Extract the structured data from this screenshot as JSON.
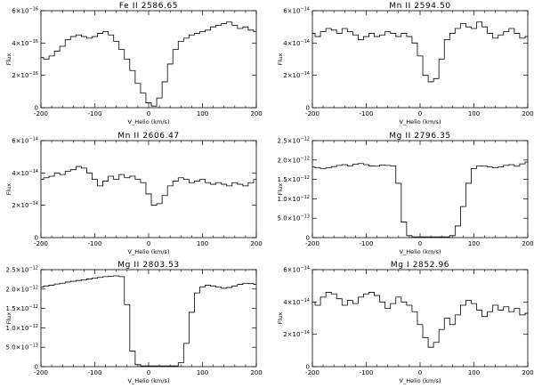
{
  "chart_data": [
    {
      "type": "line",
      "title": "Fe II 2586.65",
      "xlabel": "V_Helio (km/s)",
      "ylabel": "Flux",
      "xlim": [
        -200,
        200
      ],
      "ylim": [
        0,
        6e-16
      ],
      "grid": false,
      "xticks": [
        -200,
        -100,
        0,
        100,
        200
      ],
      "xtick_labels": [
        "-200",
        "-100",
        "0",
        "100",
        "200"
      ],
      "yticks": [
        0,
        2e-16,
        4e-16,
        6e-16
      ],
      "ytick_labels": [
        {
          "m": "0",
          "e": ""
        },
        {
          "m": "2×10",
          "e": "−16"
        },
        {
          "m": "4×10",
          "e": "−16"
        },
        {
          "m": "6×10",
          "e": "−16"
        }
      ],
      "series": [
        {
          "x": [
            -200,
            -190,
            -180,
            -170,
            -160,
            -150,
            -140,
            -130,
            -120,
            -110,
            -100,
            -90,
            -80,
            -70,
            -60,
            -50,
            -40,
            -30,
            -20,
            -10,
            0,
            10,
            20,
            30,
            40,
            50,
            60,
            70,
            80,
            90,
            100,
            110,
            120,
            130,
            140,
            150,
            160,
            170,
            180,
            190,
            200
          ],
          "y": [
            3.1e-16,
            3e-16,
            3.2e-16,
            3.5e-16,
            3.8e-16,
            4.2e-16,
            4.4e-16,
            4.5e-16,
            4.4e-16,
            4.3e-16,
            4.4e-16,
            4.6e-16,
            4.7e-16,
            4.5e-16,
            4.1e-16,
            3.6e-16,
            3e-16,
            2.3e-16,
            1.5e-16,
            9e-17,
            3e-17,
            1e-17,
            6e-17,
            1.6e-16,
            2.7e-16,
            3.6e-16,
            4.1e-16,
            4.3e-16,
            4.5e-16,
            4.6e-16,
            4.7e-16,
            4.8e-16,
            5e-16,
            5.1e-16,
            5.2e-16,
            5.3e-16,
            5.1e-16,
            4.9e-16,
            5e-16,
            4.8e-16,
            4.7e-16
          ]
        }
      ]
    },
    {
      "type": "line",
      "title": "Mn II 2594.50",
      "xlabel": "V_Helio (km/s)",
      "ylabel": "Flux",
      "xlim": [
        -200,
        200
      ],
      "ylim": [
        0,
        6e-14
      ],
      "grid": false,
      "xticks": [
        -200,
        -100,
        0,
        100,
        200
      ],
      "xtick_labels": [
        "-200",
        "-100",
        "0",
        "100",
        "200"
      ],
      "yticks": [
        0,
        2e-14,
        4e-14,
        6e-14
      ],
      "ytick_labels": [
        {
          "m": "0",
          "e": ""
        },
        {
          "m": "2×10",
          "e": "−14"
        },
        {
          "m": "4×10",
          "e": "−14"
        },
        {
          "m": "6×10",
          "e": "−14"
        }
      ],
      "series": [
        {
          "x": [
            -200,
            -190,
            -180,
            -170,
            -160,
            -150,
            -140,
            -130,
            -120,
            -110,
            -100,
            -90,
            -80,
            -70,
            -60,
            -50,
            -40,
            -30,
            -20,
            -10,
            0,
            10,
            20,
            30,
            40,
            50,
            60,
            70,
            80,
            90,
            100,
            110,
            120,
            130,
            140,
            150,
            160,
            170,
            180,
            190,
            200
          ],
          "y": [
            4.6e-14,
            4.4e-14,
            4.7e-14,
            4.9e-14,
            4.8e-14,
            4.6e-14,
            4.9e-14,
            4.7e-14,
            4.5e-14,
            4.2e-14,
            4.4e-14,
            4.6e-14,
            4.4e-14,
            4.5e-14,
            4.7e-14,
            4.6e-14,
            4.4e-14,
            4.6e-14,
            4.4e-14,
            4e-14,
            3.2e-14,
            2e-14,
            1.6e-14,
            1.8e-14,
            3e-14,
            4.2e-14,
            4.6e-14,
            4.9e-14,
            5.2e-14,
            5e-14,
            4.9e-14,
            5.3e-14,
            5e-14,
            4.6e-14,
            4.3e-14,
            4.5e-14,
            4.7e-14,
            4.9e-14,
            4.6e-14,
            4.3e-14,
            4.4e-14
          ]
        }
      ]
    },
    {
      "type": "line",
      "title": "Mn II 2606.47",
      "xlabel": "V_Helio (km/s)",
      "ylabel": "Flux",
      "xlim": [
        -200,
        200
      ],
      "ylim": [
        0,
        6e-14
      ],
      "grid": false,
      "xticks": [
        -200,
        -100,
        0,
        100,
        200
      ],
      "xtick_labels": [
        "-200",
        "-100",
        "0",
        "100",
        "200"
      ],
      "yticks": [
        0,
        2e-14,
        4e-14,
        6e-14
      ],
      "ytick_labels": [
        {
          "m": "0",
          "e": ""
        },
        {
          "m": "2×10",
          "e": "−14"
        },
        {
          "m": "4×10",
          "e": "−14"
        },
        {
          "m": "6×10",
          "e": "−14"
        }
      ],
      "series": [
        {
          "x": [
            -200,
            -190,
            -180,
            -170,
            -160,
            -150,
            -140,
            -130,
            -120,
            -110,
            -100,
            -90,
            -80,
            -70,
            -60,
            -50,
            -40,
            -30,
            -20,
            -10,
            0,
            10,
            20,
            30,
            40,
            50,
            60,
            70,
            80,
            90,
            100,
            110,
            120,
            130,
            140,
            150,
            160,
            170,
            180,
            190,
            200
          ],
          "y": [
            3.6e-14,
            3.7e-14,
            3.8e-14,
            4e-14,
            3.9e-14,
            4.1e-14,
            4.2e-14,
            4.4e-14,
            4.3e-14,
            4e-14,
            3.6e-14,
            3.2e-14,
            3.5e-14,
            3.8e-14,
            3.6e-14,
            3.9e-14,
            3.7e-14,
            3.8e-14,
            3.6e-14,
            3.4e-14,
            2.7e-14,
            2e-14,
            2.1e-14,
            2.6e-14,
            3.2e-14,
            3.5e-14,
            3.7e-14,
            3.6e-14,
            3.4e-14,
            3.5e-14,
            3.6e-14,
            3.4e-14,
            3.3e-14,
            3.4e-14,
            3.3e-14,
            3.2e-14,
            3.4e-14,
            3.3e-14,
            3.2e-14,
            3.4e-14,
            3.6e-14
          ]
        }
      ]
    },
    {
      "type": "line",
      "title": "Mg II 2796.35",
      "xlabel": "V_Helio (km/s)",
      "ylabel": "Flux",
      "xlim": [
        -200,
        200
      ],
      "ylim": [
        0,
        2.5e-12
      ],
      "grid": false,
      "xticks": [
        -200,
        -100,
        0,
        100,
        200
      ],
      "xtick_labels": [
        "-200",
        "-100",
        "0",
        "100",
        "200"
      ],
      "yticks": [
        0,
        5e-13,
        1e-12,
        1.5e-12,
        2e-12,
        2.5e-12
      ],
      "ytick_labels": [
        {
          "m": "0",
          "e": ""
        },
        {
          "m": "5.0×10",
          "e": "−13"
        },
        {
          "m": "1.0×10",
          "e": "−12"
        },
        {
          "m": "1.5×10",
          "e": "−12"
        },
        {
          "m": "2.0×10",
          "e": "−12"
        },
        {
          "m": "2.5×10",
          "e": "−12"
        }
      ],
      "series": [
        {
          "x": [
            -200,
            -190,
            -180,
            -170,
            -160,
            -150,
            -140,
            -130,
            -120,
            -110,
            -100,
            -90,
            -80,
            -70,
            -60,
            -50,
            -40,
            -30,
            -20,
            -10,
            0,
            10,
            20,
            30,
            40,
            50,
            60,
            70,
            80,
            90,
            100,
            110,
            120,
            130,
            140,
            150,
            160,
            170,
            180,
            190,
            200
          ],
          "y": [
            1.82e-12,
            1.8e-12,
            1.78e-12,
            1.8e-12,
            1.83e-12,
            1.86e-12,
            1.88e-12,
            1.85e-12,
            1.89e-12,
            1.91e-12,
            1.88e-12,
            1.85e-12,
            1.84e-12,
            1.87e-12,
            1.86e-12,
            1.85e-12,
            1.4e-12,
            4e-13,
            5e-14,
            2e-14,
            2e-14,
            2e-14,
            2e-14,
            2e-14,
            2e-14,
            2e-14,
            5e-14,
            3e-13,
            8e-13,
            1.4e-12,
            1.78e-12,
            1.85e-12,
            1.84e-12,
            1.82e-12,
            1.8e-12,
            1.82e-12,
            1.86e-12,
            1.88e-12,
            1.84e-12,
            1.9e-12,
            1.95e-12
          ]
        }
      ]
    },
    {
      "type": "line",
      "title": "Mg II 2803.53",
      "xlabel": "V_Helio (km/s)",
      "ylabel": "Flux",
      "xlim": [
        -200,
        200
      ],
      "ylim": [
        0,
        2.5e-12
      ],
      "grid": false,
      "xticks": [
        -200,
        -100,
        0,
        100,
        200
      ],
      "xtick_labels": [
        "-200",
        "-100",
        "0",
        "100",
        "200"
      ],
      "yticks": [
        0,
        5e-13,
        1e-12,
        1.5e-12,
        2e-12,
        2.5e-12
      ],
      "ytick_labels": [
        {
          "m": "0",
          "e": ""
        },
        {
          "m": "5.0×10",
          "e": "−13"
        },
        {
          "m": "1.0×10",
          "e": "−12"
        },
        {
          "m": "1.5×10",
          "e": "−12"
        },
        {
          "m": "2.0×10",
          "e": "−12"
        },
        {
          "m": "2.5×10",
          "e": "−12"
        }
      ],
      "series": [
        {
          "x": [
            -200,
            -190,
            -180,
            -170,
            -160,
            -150,
            -140,
            -130,
            -120,
            -110,
            -100,
            -90,
            -80,
            -70,
            -60,
            -50,
            -40,
            -30,
            -20,
            -10,
            0,
            10,
            20,
            30,
            40,
            50,
            60,
            70,
            80,
            90,
            100,
            110,
            120,
            130,
            140,
            150,
            160,
            170,
            180,
            190,
            200
          ],
          "y": [
            2.05e-12,
            2.08e-12,
            2.1e-12,
            2.13e-12,
            2.15e-12,
            2.18e-12,
            2.2e-12,
            2.22e-12,
            2.24e-12,
            2.26e-12,
            2.28e-12,
            2.3e-12,
            2.32e-12,
            2.33e-12,
            2.34e-12,
            2.32e-12,
            1.6e-12,
            4e-13,
            5e-14,
            2e-14,
            2e-14,
            2e-14,
            2e-14,
            2e-14,
            2e-14,
            2e-14,
            1e-13,
            6e-13,
            1.4e-12,
            1.9e-12,
            2.05e-12,
            2.1e-12,
            2.08e-12,
            2.05e-12,
            2.02e-12,
            2.04e-12,
            2.08e-12,
            2.12e-12,
            2.15e-12,
            2.14e-12,
            2.12e-12
          ]
        }
      ]
    },
    {
      "type": "line",
      "title": "Mg I 2852.96",
      "xlabel": "V_Helio (km/s)",
      "ylabel": "Flux",
      "xlim": [
        -200,
        200
      ],
      "ylim": [
        0,
        6e-14
      ],
      "grid": false,
      "xticks": [
        -200,
        -100,
        0,
        100,
        200
      ],
      "xtick_labels": [
        "-200",
        "-100",
        "0",
        "100",
        "200"
      ],
      "yticks": [
        0,
        2e-14,
        4e-14,
        6e-14
      ],
      "ytick_labels": [
        {
          "m": "0",
          "e": ""
        },
        {
          "m": "2×10",
          "e": "−14"
        },
        {
          "m": "4×10",
          "e": "−14"
        },
        {
          "m": "6×10",
          "e": "−14"
        }
      ],
      "series": [
        {
          "x": [
            -200,
            -190,
            -180,
            -170,
            -160,
            -150,
            -140,
            -130,
            -120,
            -110,
            -100,
            -90,
            -80,
            -70,
            -60,
            -50,
            -40,
            -30,
            -20,
            -10,
            0,
            10,
            20,
            30,
            40,
            50,
            60,
            70,
            80,
            90,
            100,
            110,
            120,
            130,
            140,
            150,
            160,
            170,
            180,
            190,
            200
          ],
          "y": [
            4e-14,
            3.8e-14,
            4.3e-14,
            4.6e-14,
            4.5e-14,
            4.2e-14,
            3.8e-14,
            4.1e-14,
            3.9e-14,
            4.3e-14,
            4.5e-14,
            4.6e-14,
            4.4e-14,
            4e-14,
            3.6e-14,
            3.9e-14,
            4.3e-14,
            4e-14,
            3.8e-14,
            3.4e-14,
            2.6e-14,
            1.8e-14,
            1.2e-14,
            1.5e-14,
            2.3e-14,
            3e-14,
            2.6e-14,
            3.2e-14,
            3.8e-14,
            4.1e-14,
            3.9e-14,
            3.5e-14,
            3.1e-14,
            3.4e-14,
            3.8e-14,
            3.5e-14,
            3.7e-14,
            3.4e-14,
            3.6e-14,
            3.2e-14,
            3.3e-14
          ]
        }
      ]
    }
  ]
}
